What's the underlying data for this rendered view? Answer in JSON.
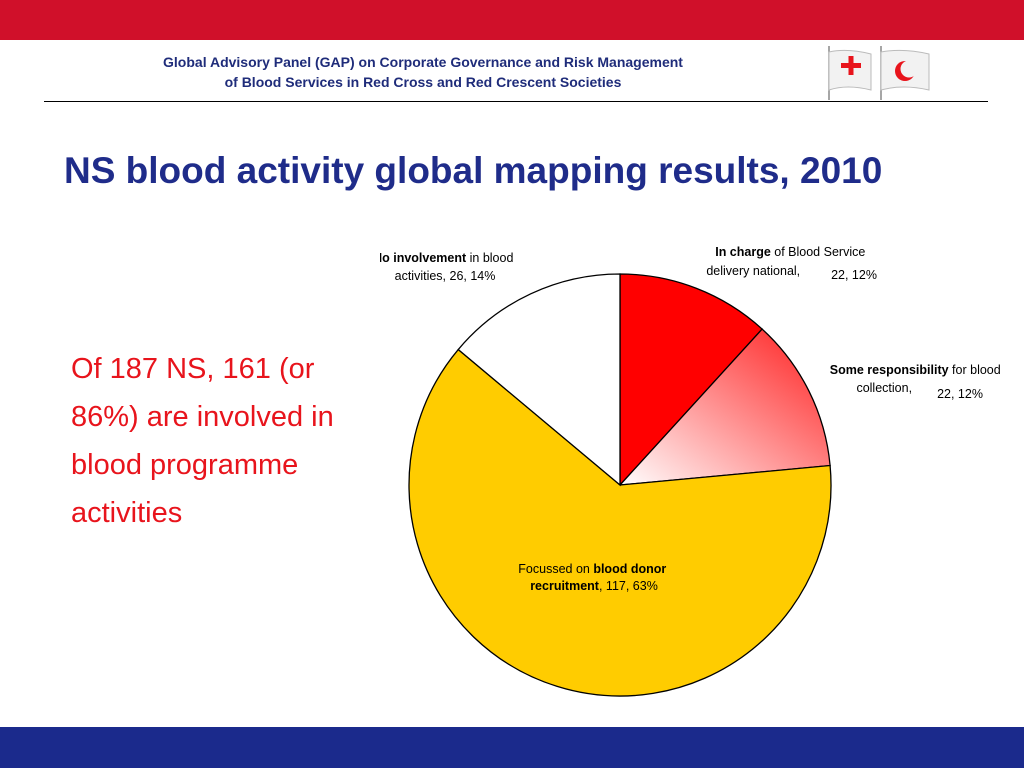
{
  "header": {
    "line1": "Global Advisory Panel (GAP) on Corporate Governance and Risk Management",
    "line2": "of Blood Services in Red Cross and Red Crescent Societies"
  },
  "logos": [
    "red-cross-flag-icon",
    "red-crescent-flag-icon"
  ],
  "title": "NS blood activity global mapping results, 2010",
  "callout": "Of 187 NS, 161 (or 86%) are involved in blood programme activities",
  "colors": {
    "top_bar": "#d0102a",
    "bottom_bar": "#1b2a8c",
    "title": "#1f2c8a",
    "callout": "#e8141c"
  },
  "chart_data": {
    "type": "pie",
    "slices": [
      {
        "bold": "In charge",
        "rest": " of Blood Service",
        "line2": "delivery national,",
        "suffix": "22, 12%",
        "value": 22,
        "percent": 12,
        "color": "#ff0000"
      },
      {
        "bold": "Some responsibility",
        "rest": " for blood",
        "line2": "collection,",
        "suffix": "22, 12%",
        "value": 22,
        "percent": 12,
        "color": "gradient-red-white"
      },
      {
        "pre": "Focussed on ",
        "bold": "blood donor",
        "line2_bold": "recruitment",
        "line2_rest": ", 117, 63%",
        "value": 117,
        "percent": 63,
        "color": "#ffcc00"
      },
      {
        "bold": "No involvement",
        "rest": " in blood",
        "line2": "activities, 26, 14%",
        "value": 26,
        "percent": 14,
        "color": "#ffffff"
      }
    ]
  }
}
